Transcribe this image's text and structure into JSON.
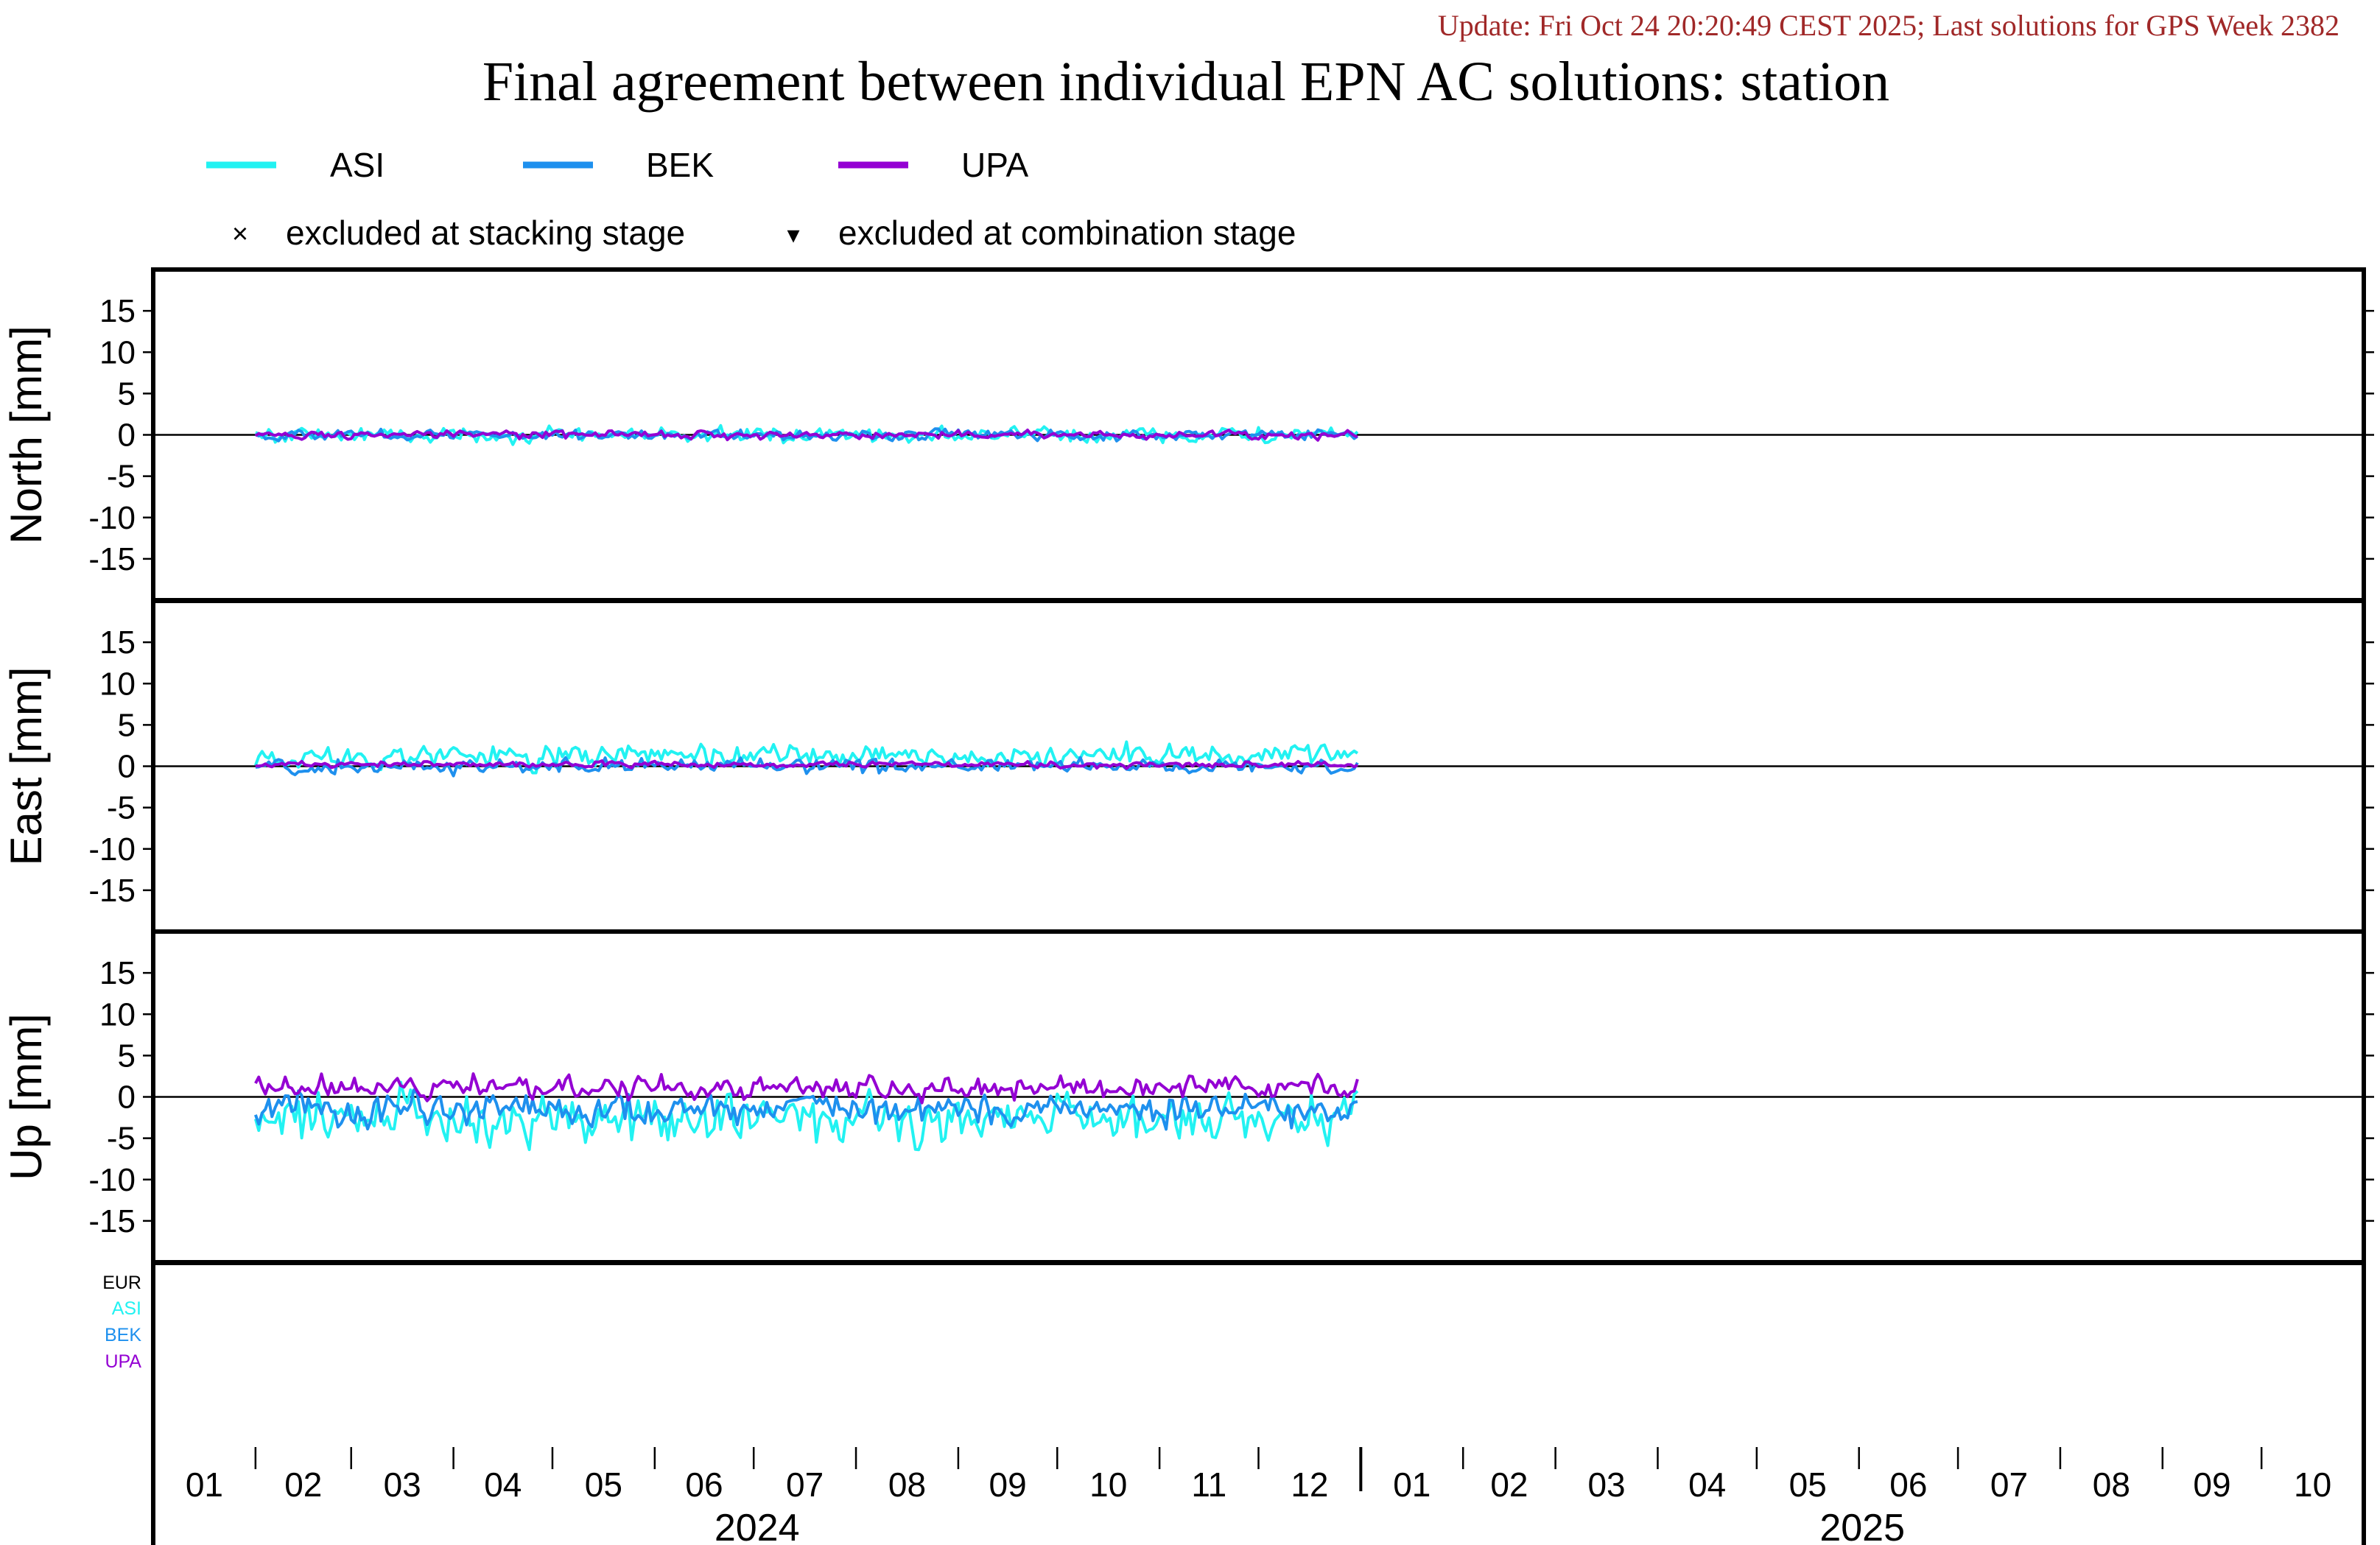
{
  "header": {
    "update_text": "Update: Fri Oct 24 20:20:49 CEST 2025; Last solutions for GPS Week 2382",
    "title": "Final agreement between individual EPN AC solutions: station"
  },
  "legend": {
    "series": [
      {
        "name": "ASI",
        "color": "#22f2f2"
      },
      {
        "name": "BEK",
        "color": "#1e90ee"
      },
      {
        "name": "UPA",
        "color": "#9400d3"
      }
    ],
    "markers": [
      {
        "symbol": "×",
        "label": "excluded at stacking stage"
      },
      {
        "symbol": "▾",
        "label": "excluded at combination stage"
      }
    ]
  },
  "bottom_panel_labels": [
    {
      "text": "EUR",
      "color": "#000000"
    },
    {
      "text": "ASI",
      "color": "#22f2f2"
    },
    {
      "text": "BEK",
      "color": "#1e90ee"
    },
    {
      "text": "UPA",
      "color": "#9400d3"
    }
  ],
  "chart_data": {
    "type": "line",
    "x_axis": {
      "month_labels": [
        "01",
        "02",
        "03",
        "04",
        "05",
        "06",
        "07",
        "08",
        "09",
        "10",
        "11",
        "12",
        "01",
        "02",
        "03",
        "04",
        "05",
        "06",
        "07",
        "08",
        "09",
        "10"
      ],
      "year_labels": [
        "2024",
        "2025"
      ],
      "range": [
        "2024-01-01",
        "2025-10-31"
      ]
    },
    "data_range": [
      "2024-02-01",
      "2024-12-31"
    ],
    "ylim": [
      -20,
      20
    ],
    "yticks": [
      15,
      10,
      5,
      0,
      -5,
      -10,
      -15
    ],
    "panels": [
      {
        "ylabel": "North [mm]",
        "key": "north",
        "series": [
          {
            "name": "ASI",
            "mean": 0.0,
            "amp": 0.9
          },
          {
            "name": "BEK",
            "mean": 0.0,
            "amp": 0.6
          },
          {
            "name": "UPA",
            "mean": 0.0,
            "amp": 0.45
          }
        ]
      },
      {
        "ylabel": "East [mm]",
        "key": "east",
        "series": [
          {
            "name": "ASI",
            "mean": 1.2,
            "amp": 1.3
          },
          {
            "name": "BEK",
            "mean": 0.0,
            "amp": 0.8
          },
          {
            "name": "UPA",
            "mean": 0.2,
            "amp": 0.35
          }
        ]
      },
      {
        "ylabel": "Up [mm]",
        "key": "up",
        "series": [
          {
            "name": "ASI",
            "mean": -2.5,
            "amp": 2.8
          },
          {
            "name": "BEK",
            "mean": -1.5,
            "amp": 1.9
          },
          {
            "name": "UPA",
            "mean": 1.2,
            "amp": 1.3
          }
        ]
      }
    ]
  }
}
